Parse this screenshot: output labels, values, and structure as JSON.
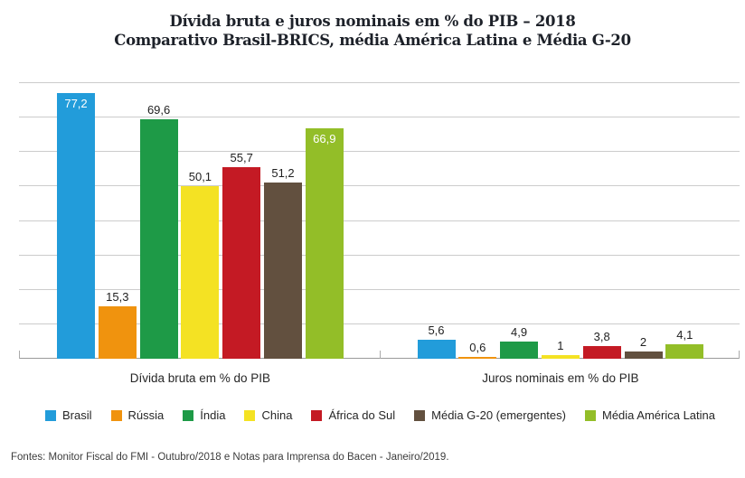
{
  "title": {
    "line1": "Dívida bruta e juros nominais em % do PIB – 2018",
    "line2": "Comparativo Brasil-BRICS, média América Latina e Média G-20"
  },
  "footer": {
    "text": "Fontes: Monitor Fiscal do FMI - Outubro/2018 e Notas para Imprensa do Bacen - Janeiro/2019."
  },
  "chart_data": {
    "type": "bar",
    "title": "Dívida bruta e juros nominais em % do PIB – 2018",
    "subtitle": "Comparativo Brasil-BRICS, média América Latina e Média G-20",
    "categories": [
      "Dívida bruta em % do PIB",
      "Juros nominais em % do PIB"
    ],
    "series": [
      {
        "name": "Brasil",
        "color": "#229CDA",
        "values": [
          77.2,
          5.6
        ],
        "labels": [
          "77,2",
          "5,6"
        ],
        "label_inside": [
          true,
          false
        ]
      },
      {
        "name": "Rússia",
        "color": "#F0930E",
        "values": [
          15.3,
          0.6
        ],
        "labels": [
          "15,3",
          "0,6"
        ],
        "label_inside": [
          false,
          false
        ]
      },
      {
        "name": "Índia",
        "color": "#1E9A47",
        "values": [
          69.6,
          4.9
        ],
        "labels": [
          "69,6",
          "4,9"
        ],
        "label_inside": [
          false,
          false
        ]
      },
      {
        "name": "China",
        "color": "#F4E223",
        "values": [
          50.1,
          1.0
        ],
        "labels": [
          "50,1",
          "1"
        ],
        "label_inside": [
          false,
          false
        ]
      },
      {
        "name": "África do Sul",
        "color": "#C41A24",
        "values": [
          55.7,
          3.8
        ],
        "labels": [
          "55,7",
          "3,8"
        ],
        "label_inside": [
          false,
          false
        ]
      },
      {
        "name": "Média G-20 (emergentes)",
        "color": "#62503F",
        "values": [
          51.2,
          2.0
        ],
        "labels": [
          "51,2",
          "2"
        ],
        "label_inside": [
          false,
          false
        ]
      },
      {
        "name": "Média América Latina",
        "color": "#93BE28",
        "values": [
          66.9,
          4.1
        ],
        "labels": [
          "66,9",
          "4,1"
        ],
        "label_inside": [
          true,
          false
        ]
      }
    ],
    "ylim": [
      0,
      80
    ],
    "gridline_step": 10,
    "grid": true,
    "y_axis_labels_visible": false,
    "legend_position": "bottom",
    "value_labels": true
  }
}
